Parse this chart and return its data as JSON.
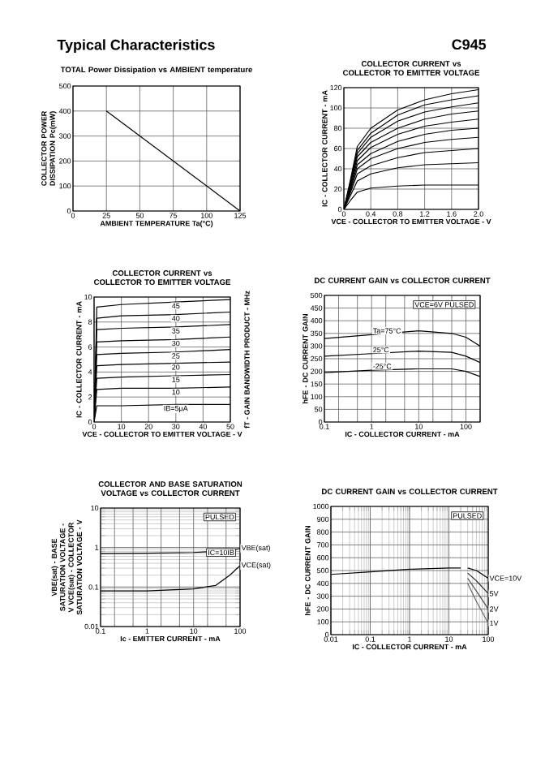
{
  "chart_data": [
    {
      "type": "other",
      "annotations": [
        "Typical Characteristics",
        "C945"
      ]
    },
    {
      "type": "line",
      "title": "TOTAL Power Dissipation vs AMBIENT temperature",
      "xlabel": "AMBIENT TEMPERATURE Ta(°C)",
      "ylabel": "COLLECTOR POWER DISSIPATION Pc(mW)",
      "x": [
        25,
        125
      ],
      "values": [
        400,
        0
      ],
      "color": "#000000",
      "xlim": [
        0,
        125
      ],
      "xticks": [
        0,
        25,
        50,
        75,
        100,
        125
      ],
      "ylim": [
        0,
        500
      ],
      "yticks": [
        0,
        100,
        200,
        300,
        400,
        500
      ],
      "grid": true
    },
    {
      "type": "line",
      "title": "COLLECTOR CURRENT vs COLLECTOR TO EMITTER VOLTAGE",
      "xlabel": "VCE - COLLECTOR TO EMITTER VOLTAGE - V",
      "ylabel": "IC - COLLECTOR CURRENT - mA",
      "x": [
        0,
        0.1,
        0.2,
        0.4,
        0.8,
        1.2,
        1.6,
        2.0
      ],
      "xlim": [
        0,
        2.0
      ],
      "xticks": [
        0,
        0.4,
        0.8,
        1.2,
        1.6,
        {
          "value": 2,
          "label": "2.0"
        }
      ],
      "ylim": [
        0,
        120
      ],
      "yticks": [
        0,
        20,
        40,
        60,
        80,
        100,
        120
      ],
      "grid": true,
      "series": [
        {
          "color": "#000000",
          "values": [
            0,
            30,
            62,
            80,
            98,
            108,
            114,
            118
          ]
        },
        {
          "color": "#000000",
          "values": [
            0,
            28,
            58,
            75,
            93,
            103,
            108,
            112
          ]
        },
        {
          "color": "#000000",
          "values": [
            0,
            27,
            55,
            71,
            87,
            96,
            101,
            105
          ]
        },
        {
          "color": "#000000",
          "values": [
            0,
            25,
            52,
            66,
            80,
            89,
            94,
            97
          ]
        },
        {
          "color": "#000000",
          "values": [
            0,
            23,
            48,
            61,
            74,
            82,
            86,
            89
          ]
        },
        {
          "color": "#000000",
          "values": [
            0,
            21,
            44,
            55,
            67,
            74,
            78,
            80
          ]
        },
        {
          "color": "#000000",
          "values": [
            0,
            19,
            40,
            50,
            60,
            66,
            69,
            71
          ]
        },
        {
          "color": "#000000",
          "values": [
            0,
            17,
            35,
            43,
            51,
            56,
            58,
            60
          ]
        },
        {
          "color": "#000000",
          "values": [
            0,
            14,
            28,
            35,
            41,
            44,
            45,
            46
          ]
        },
        {
          "color": "#000000",
          "values": [
            0,
            9,
            17,
            21,
            23,
            24,
            24,
            24
          ]
        }
      ]
    },
    {
      "type": "line",
      "title": "COLLECTOR CURRENT vs COLLECTOR TO EMITTER VOLTAGE",
      "xlabel": "VCE - COLLECTOR TO EMITTER VOLTAGE - V",
      "ylabel": "IC - COLLECTOR CURRENT - mA",
      "y2label": "fT - GAIN BANDWIDTH PRODUCT - MHz",
      "x": [
        0,
        1,
        10,
        30,
        50
      ],
      "xlim": [
        0,
        50
      ],
      "xticks": [
        0,
        10,
        20,
        30,
        40,
        50
      ],
      "ylim": [
        0,
        10
      ],
      "yticks": [
        0,
        2,
        4,
        6,
        8,
        10
      ],
      "grid": true,
      "series": [
        {
          "name": "45",
          "color": "#000000",
          "values": [
            0,
            9.2,
            9.4,
            9.6,
            9.8
          ]
        },
        {
          "name": "40",
          "color": "#000000",
          "values": [
            0,
            8.3,
            8.5,
            8.6,
            8.8
          ]
        },
        {
          "name": "35",
          "color": "#000000",
          "values": [
            0,
            7.4,
            7.5,
            7.6,
            7.8
          ]
        },
        {
          "name": "30",
          "color": "#000000",
          "values": [
            0,
            6.4,
            6.5,
            6.6,
            6.8
          ]
        },
        {
          "name": "25",
          "color": "#000000",
          "values": [
            0,
            5.4,
            5.5,
            5.6,
            5.8
          ]
        },
        {
          "name": "20",
          "color": "#000000",
          "values": [
            0,
            4.5,
            4.6,
            4.7,
            4.8
          ]
        },
        {
          "name": "15",
          "color": "#000000",
          "values": [
            0,
            3.5,
            3.6,
            3.7,
            3.8
          ]
        },
        {
          "name": "10",
          "color": "#000000",
          "values": [
            0,
            2.6,
            2.7,
            2.7,
            2.8
          ]
        },
        {
          "name": "IB=5μA",
          "color": "#000000",
          "values": [
            0,
            1.3,
            1.3,
            1.4,
            1.4
          ]
        }
      ]
    },
    {
      "type": "line",
      "title": "DC CURRENT GAIN vs COLLECTOR CURRENT",
      "xlabel": "IC - COLLECTOR CURRENT - mA",
      "ylabel": "hFE - DC CURRENT GAIN",
      "log": "x",
      "x": [
        0.1,
        1,
        10,
        50,
        100,
        200
      ],
      "xlim": [
        0.1,
        200
      ],
      "xticks": [
        0.1,
        {
          "value": 0.2,
          "label": null
        },
        {
          "value": 0.5,
          "label": null
        },
        1,
        {
          "value": 2,
          "label": null
        },
        {
          "value": 5,
          "label": null
        },
        10,
        {
          "value": 20,
          "label": null
        },
        {
          "value": 50,
          "label": null
        },
        100,
        {
          "value": 200,
          "label": null
        }
      ],
      "ylim": [
        0,
        500
      ],
      "yticks": [
        0,
        50,
        100,
        150,
        200,
        250,
        300,
        350,
        400,
        450,
        500
      ],
      "grid": true,
      "annotations": [
        "VCE=6V PULSED"
      ],
      "series": [
        {
          "name": "Ta=75°C",
          "color": "#000000",
          "values": [
            330,
            345,
            360,
            350,
            335,
            300
          ]
        },
        {
          "name": "25°C",
          "color": "#000000",
          "values": [
            260,
            270,
            280,
            275,
            260,
            235
          ]
        },
        {
          "name": "-25°C",
          "color": "#000000",
          "values": [
            195,
            205,
            210,
            210,
            200,
            180
          ]
        }
      ]
    },
    {
      "type": "line",
      "title": "COLLECTOR AND BASE SATURATION VOLTAGE vs COLLECTOR CURRENT",
      "xlabel": "Ic - EMITTER CURRENT - mA",
      "ylabel": "VBE(sat) - BASE SATURATION VOLTAGE - V VCE(sat) - COLLECTOR SATURATION VOLTAGE - V",
      "log": "xy",
      "x": [
        0.1,
        1,
        10,
        30,
        60,
        100
      ],
      "xlim": [
        0.1,
        100
      ],
      "xticks": [
        0.1,
        {
          "value": 0.2,
          "label": null
        },
        {
          "value": 0.5,
          "label": null
        },
        1,
        {
          "value": 2,
          "label": null
        },
        {
          "value": 5,
          "label": null
        },
        10,
        {
          "value": 20,
          "label": null
        },
        {
          "value": 50,
          "label": null
        },
        100
      ],
      "ylim": [
        0.01,
        10
      ],
      "yticks": [
        0.01,
        0.1,
        1,
        10
      ],
      "grid": true,
      "annotations": [
        "PULSED",
        "IC=10IB"
      ],
      "series": [
        {
          "name": "VBE(sat)",
          "color": "#000000",
          "values": [
            0.7,
            0.72,
            0.75,
            0.8,
            0.85,
            0.95
          ]
        },
        {
          "name": "VCE(sat)",
          "color": "#000000",
          "values": [
            0.08,
            0.08,
            0.09,
            0.11,
            0.2,
            0.35
          ]
        }
      ]
    },
    {
      "type": "line",
      "title": "DC CURRENT GAIN vs COLLECTOR CURRENT",
      "xlabel": "IC - COLLECTOR CURRENT - mA",
      "ylabel": "hFE - DC CURRENT GAIN",
      "log": "x",
      "xlim": [
        0.01,
        100
      ],
      "xticks": [
        0.01,
        0.1,
        1,
        10,
        100
      ],
      "ylim": [
        0,
        1000
      ],
      "yticks": [
        0,
        100,
        200,
        300,
        400,
        500,
        600,
        700,
        800,
        900,
        1000
      ],
      "grid": true,
      "annotations": [
        "PULSED"
      ],
      "series": [
        {
          "color": "#000000",
          "x": [
            0.01,
            0.1,
            1,
            10,
            20
          ],
          "values": [
            470,
            490,
            510,
            520,
            520
          ]
        },
        {
          "name": "VCE=10V",
          "color": "#000000",
          "x": [
            30,
            50,
            100
          ],
          "values": [
            520,
            500,
            440
          ]
        },
        {
          "name": "5V",
          "color": "#222222",
          "x": [
            30,
            50,
            100
          ],
          "values": [
            480,
            420,
            320
          ]
        },
        {
          "name": "2V",
          "color": "#444444",
          "x": [
            30,
            50,
            100
          ],
          "values": [
            440,
            340,
            200
          ]
        },
        {
          "name": "1V",
          "color": "#666666",
          "x": [
            30,
            50,
            100
          ],
          "values": [
            400,
            260,
            90
          ]
        }
      ]
    }
  ]
}
